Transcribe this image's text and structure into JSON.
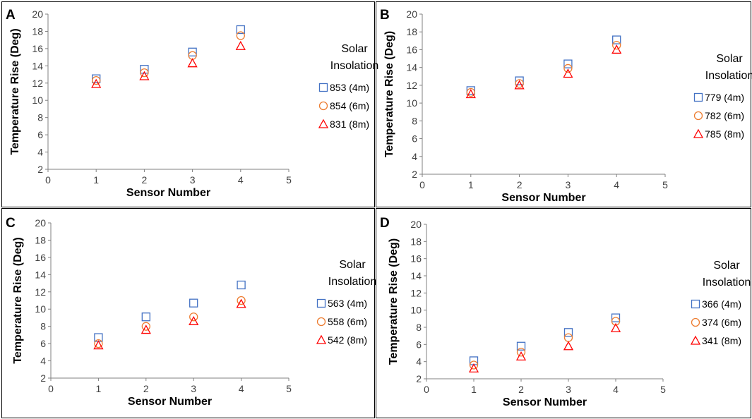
{
  "figure": {
    "colors": {
      "series_4m": "#4472C4",
      "series_6m": "#ED7D31",
      "series_8m": "#FF0000",
      "axis": "#808080",
      "border": "#000000"
    }
  },
  "chart_data": [
    {
      "panel": "A",
      "type": "scatter",
      "xlabel": "Sensor Number",
      "ylabel": "Temperature Rise (Deg)",
      "xlim": [
        0,
        5
      ],
      "ylim": [
        2,
        20
      ],
      "xticks": [
        "0",
        "1",
        "2",
        "3",
        "4",
        "5"
      ],
      "yticks": [
        "2",
        "4",
        "6",
        "8",
        "10",
        "12",
        "14",
        "16",
        "18",
        "20"
      ],
      "legend_title": [
        "Solar",
        "Insolation"
      ],
      "x": [
        1,
        2,
        3,
        4
      ],
      "series": [
        {
          "name": "853 (4m)",
          "marker": "square",
          "values": [
            12.5,
            13.6,
            15.6,
            18.2
          ]
        },
        {
          "name": "854 (6m)",
          "marker": "circle",
          "values": [
            12.3,
            13.2,
            15.2,
            17.5
          ]
        },
        {
          "name": "831 (8m)",
          "marker": "triangle",
          "values": [
            11.9,
            12.8,
            14.3,
            16.3
          ]
        }
      ]
    },
    {
      "panel": "B",
      "type": "scatter",
      "xlabel": "Sensor Number",
      "ylabel": "Temperature Rise (Deg)",
      "xlim": [
        0,
        5
      ],
      "ylim": [
        2,
        20
      ],
      "xticks": [
        "0",
        "1",
        "2",
        "3",
        "4",
        "5"
      ],
      "yticks": [
        "2",
        "4",
        "6",
        "8",
        "10",
        "12",
        "14",
        "16",
        "18",
        "20"
      ],
      "legend_title": [
        "Solar",
        "Insolation"
      ],
      "x": [
        1,
        2,
        3,
        4
      ],
      "series": [
        {
          "name": "779 (4m)",
          "marker": "square",
          "values": [
            11.4,
            12.5,
            14.4,
            17.1
          ]
        },
        {
          "name": "782 (6m)",
          "marker": "circle",
          "values": [
            11.2,
            12.2,
            13.9,
            16.5
          ]
        },
        {
          "name": "785 (8m)",
          "marker": "triangle",
          "values": [
            11.0,
            12.0,
            13.3,
            16.0
          ]
        }
      ]
    },
    {
      "panel": "C",
      "type": "scatter",
      "xlabel": "Sensor Number",
      "ylabel": "Temperature Rise (Deg)",
      "xlim": [
        0,
        5
      ],
      "ylim": [
        2,
        20
      ],
      "xticks": [
        "0",
        "1",
        "2",
        "3",
        "4",
        "5"
      ],
      "yticks": [
        "2",
        "4",
        "6",
        "8",
        "10",
        "12",
        "14",
        "16",
        "18",
        "20"
      ],
      "legend_title": [
        "Solar",
        "Insolation"
      ],
      "x": [
        1,
        2,
        3,
        4
      ],
      "series": [
        {
          "name": "563 (4m)",
          "marker": "square",
          "values": [
            6.7,
            9.1,
            10.7,
            12.8
          ]
        },
        {
          "name": "558 (6m)",
          "marker": "circle",
          "values": [
            6.0,
            8.0,
            9.1,
            11.0
          ]
        },
        {
          "name": "542 (8m)",
          "marker": "triangle",
          "values": [
            5.8,
            7.6,
            8.6,
            10.6
          ]
        }
      ]
    },
    {
      "panel": "D",
      "type": "scatter",
      "xlabel": "Sensor Number",
      "ylabel": "Temperature Rise (Deg)",
      "xlim": [
        0,
        5
      ],
      "ylim": [
        2,
        20
      ],
      "xticks": [
        "0",
        "1",
        "2",
        "3",
        "4",
        "5"
      ],
      "yticks": [
        "2",
        "4",
        "6",
        "8",
        "10",
        "12",
        "14",
        "16",
        "18",
        "20"
      ],
      "legend_title": [
        "Solar",
        "Insolation"
      ],
      "x": [
        1,
        2,
        3,
        4
      ],
      "series": [
        {
          "name": "366 (4m)",
          "marker": "square",
          "values": [
            4.1,
            5.8,
            7.4,
            9.1
          ]
        },
        {
          "name": "374 (6m)",
          "marker": "circle",
          "values": [
            3.6,
            5.1,
            6.8,
            8.7
          ]
        },
        {
          "name": "341 (8m)",
          "marker": "triangle",
          "values": [
            3.2,
            4.6,
            5.8,
            7.9
          ]
        }
      ]
    }
  ]
}
